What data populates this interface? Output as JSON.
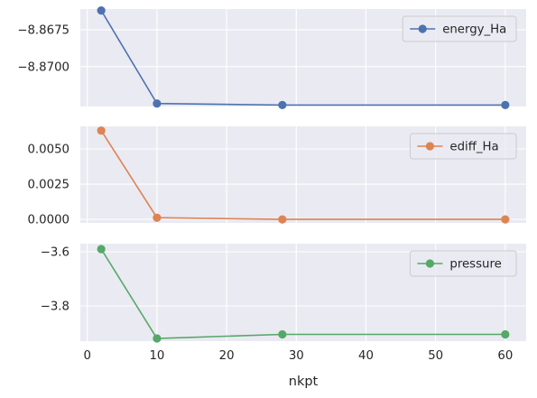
{
  "chart_data": {
    "type": "line",
    "xlabel": "nkpt",
    "x": [
      2,
      10,
      28,
      60
    ],
    "xlim": [
      -1,
      63
    ],
    "xticks": [
      0,
      10,
      20,
      30,
      40,
      50,
      60
    ],
    "grid": true,
    "legend_position": "upper right",
    "subplots": [
      {
        "series": [
          {
            "name": "energy_Ha",
            "color": "#4c72b0",
            "values": [
              -8.8662,
              -8.8725,
              -8.8726,
              -8.8726
            ]
          }
        ],
        "ylim": [
          -8.8727,
          -8.8661
        ],
        "yticks": [
          -8.8675,
          -8.87
        ],
        "ytick_labels": [
          "−8.8675",
          "−8.8700"
        ]
      },
      {
        "series": [
          {
            "name": "ediff_Ha",
            "color": "#dd8452",
            "values": [
              0.0063,
              0.00012,
              0.0,
              0.0
            ]
          }
        ],
        "ylim": [
          -0.00025,
          0.0066
        ],
        "yticks": [
          0.005,
          0.0025,
          0.0
        ],
        "ytick_labels": [
          "0.0050",
          "0.0025",
          "0.0000"
        ]
      },
      {
        "series": [
          {
            "name": "pressure",
            "color": "#55a868",
            "values": [
              -3.59,
              -3.92,
              -3.905,
              -3.905
            ]
          }
        ],
        "ylim": [
          -3.93,
          -3.57
        ],
        "yticks": [
          -3.6,
          -3.8
        ],
        "ytick_labels": [
          "−3.6",
          "−3.8"
        ]
      }
    ]
  }
}
